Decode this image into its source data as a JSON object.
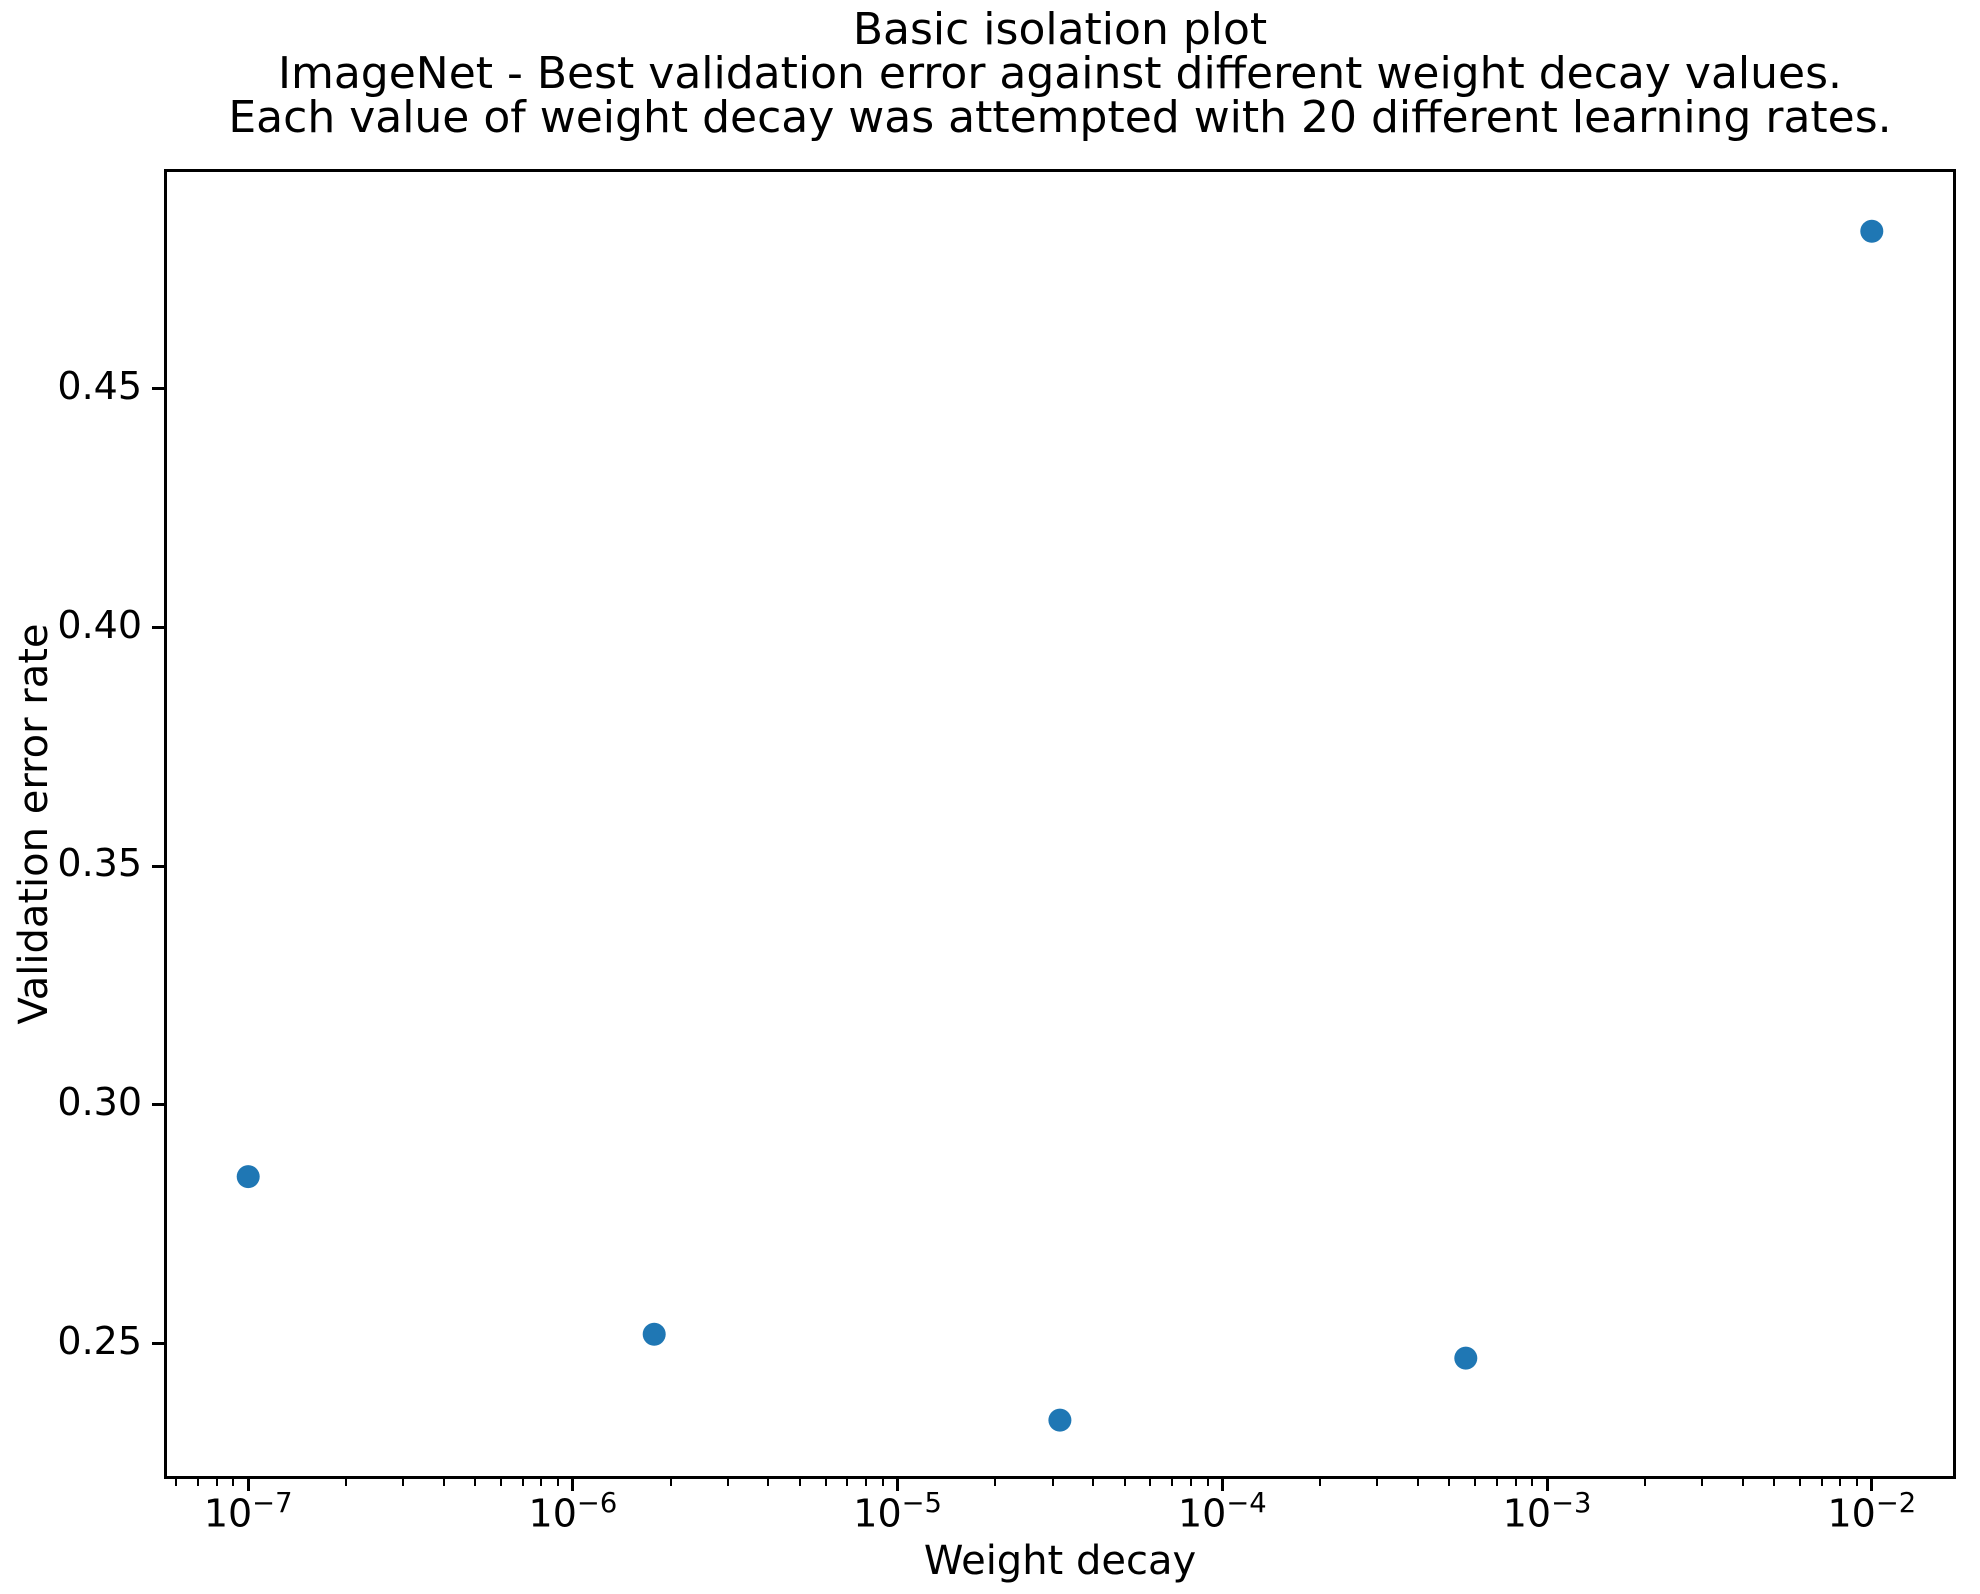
{
  "title": {
    "lines": [
      "Basic isolation plot",
      "ImageNet - Best validation error against different weight decay values.",
      "Each value of weight decay was attempted with 20 different learning rates."
    ]
  },
  "chart_data": {
    "type": "scatter",
    "title": "Basic isolation plot\nImageNet - Best validation error against different weight decay values.\nEach value of weight decay was attempted with 20 different learning rates.",
    "xlabel": "Weight decay",
    "ylabel": "Validation error rate",
    "x_scale": "log",
    "y_scale": "linear",
    "xlim_log10": [
      -7.25,
      -1.75
    ],
    "ylim": [
      0.2223,
      0.4954
    ],
    "grid": false,
    "legend": null,
    "marker_color": "#1f77b4",
    "marker_radius_px": 11.5,
    "x_ticks": [
      {
        "log10": -7,
        "base": "10",
        "exp": "−7"
      },
      {
        "log10": -6,
        "base": "10",
        "exp": "−6"
      },
      {
        "log10": -5,
        "base": "10",
        "exp": "−5"
      },
      {
        "log10": -4,
        "base": "10",
        "exp": "−4"
      },
      {
        "log10": -3,
        "base": "10",
        "exp": "−3"
      },
      {
        "log10": -2,
        "base": "10",
        "exp": "−2"
      }
    ],
    "x_minor_tick_decades": [
      -8,
      -7,
      -6,
      -5,
      -4,
      -3,
      -2
    ],
    "x_minor_tick_multiples": [
      2,
      3,
      4,
      5,
      6,
      7,
      8,
      9
    ],
    "y_ticks": [
      {
        "value": 0.25,
        "label": "0.25"
      },
      {
        "value": 0.3,
        "label": "0.30"
      },
      {
        "value": 0.35,
        "label": "0.35"
      },
      {
        "value": 0.4,
        "label": "0.40"
      },
      {
        "value": 0.45,
        "label": "0.45"
      }
    ],
    "points": [
      {
        "x": 1e-07,
        "y": 0.285
      },
      {
        "x": 1.78e-06,
        "y": 0.252
      },
      {
        "x": 3.16e-05,
        "y": 0.234
      },
      {
        "x": 0.000562,
        "y": 0.247
      },
      {
        "x": 0.01,
        "y": 0.483
      }
    ]
  }
}
